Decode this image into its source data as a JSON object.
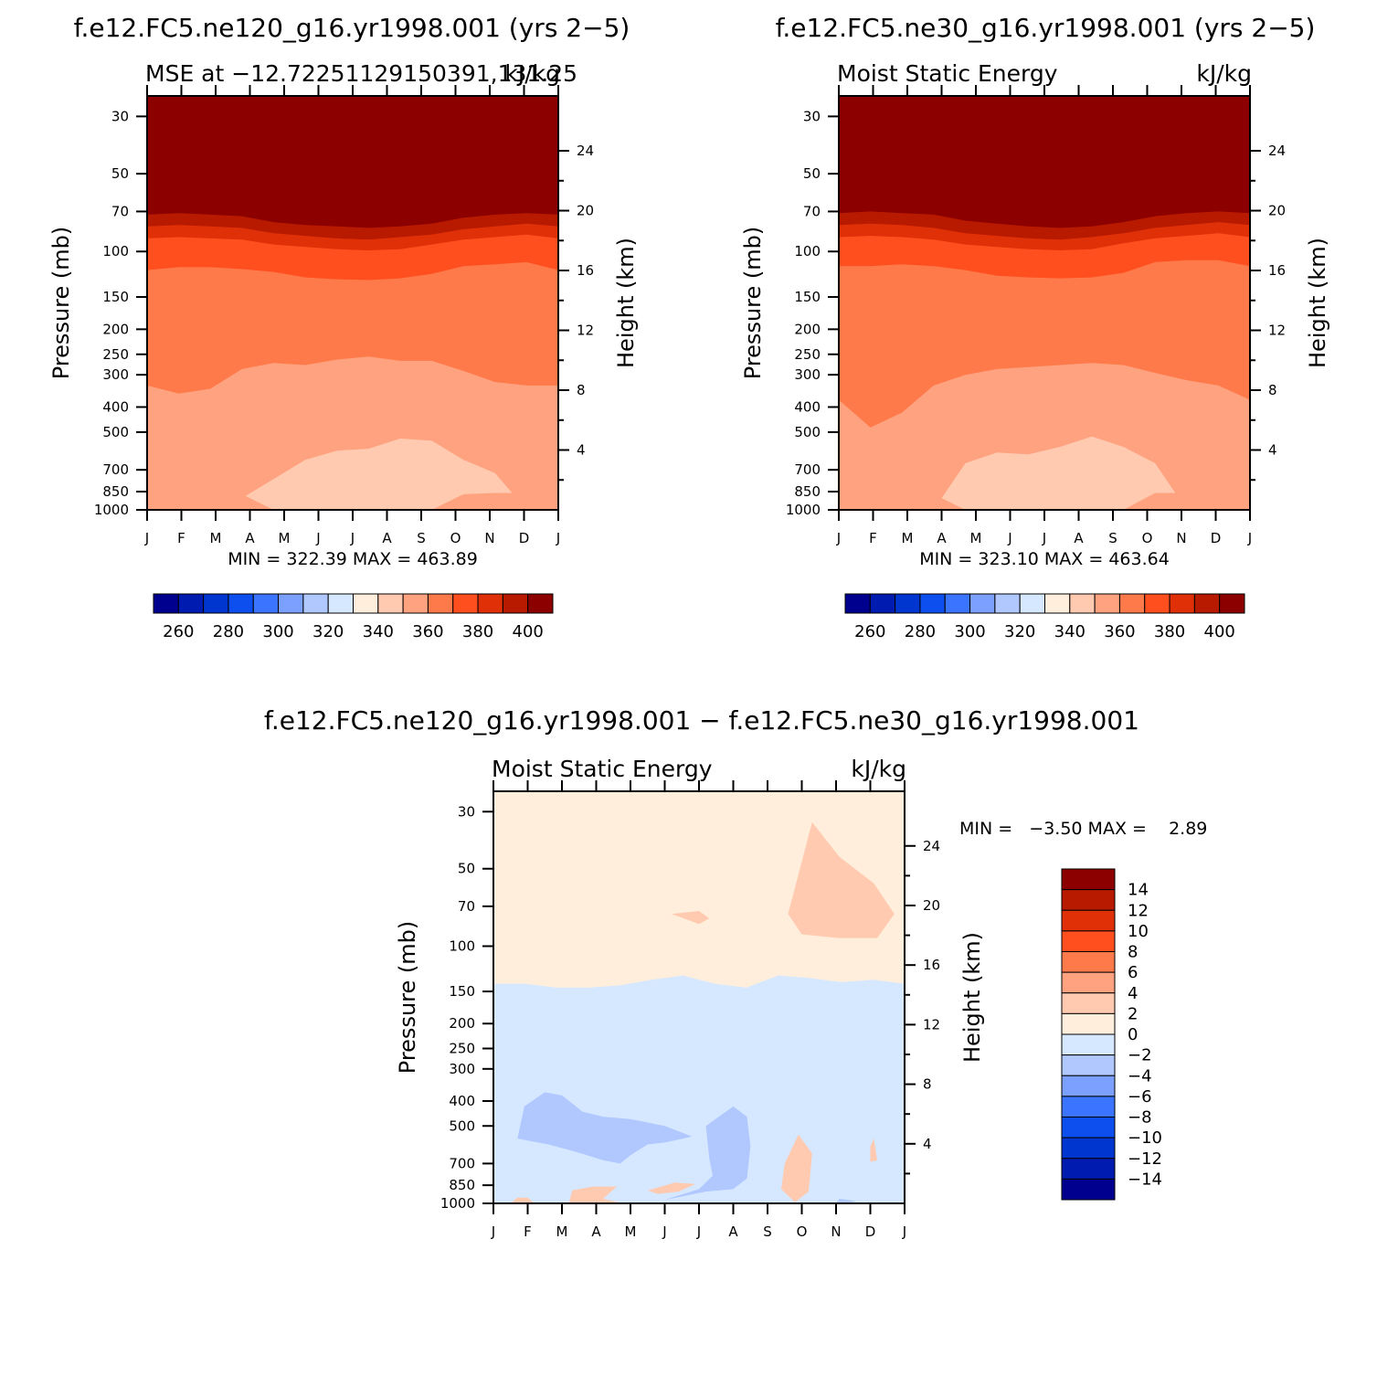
{
  "figure": {
    "titles": {
      "top_left": "f.e12.FC5.ne120_g16.yr1998.001 (yrs 2−5)",
      "top_right": "f.e12.FC5.ne30_g16.yr1998.001 (yrs 2−5)",
      "bottom": "f.e12.FC5.ne120_g16.yr1998.001 − f.e12.FC5.ne30_g16.yr1998.001"
    }
  },
  "chart_data": [
    {
      "type": "heatmap",
      "panel_id": "p1",
      "title_left": "MSE at −12.72251129150391,131.25",
      "title_right": "kJ/kg",
      "xlabel": "",
      "ylabel_left": "Pressure (mb)",
      "ylabel_right": "Height (km)",
      "x_tick_labels": [
        "J",
        "F",
        "M",
        "A",
        "M",
        "J",
        "J",
        "A",
        "S",
        "O",
        "N",
        "D",
        "J"
      ],
      "pressure_ticks": [
        30,
        50,
        70,
        100,
        150,
        200,
        250,
        300,
        400,
        500,
        700,
        850,
        1000
      ],
      "height_ticks": [
        4,
        8,
        12,
        16,
        20,
        24
      ],
      "ylim_mb": [
        1000,
        25
      ],
      "stats_text": "MIN = 322.39 MAX = 463.89",
      "min": 322.39,
      "max": 463.89,
      "boundaries_mb": [
        {
          "level": 400,
          "values": [
            58,
            57,
            59,
            59,
            62,
            63,
            64,
            64,
            63,
            61,
            57,
            55,
            56,
            58
          ]
        },
        {
          "level": 390,
          "values": [
            66,
            64,
            65,
            65,
            69,
            70,
            72,
            73,
            72,
            70,
            67,
            65,
            64,
            66
          ]
        },
        {
          "level": 380,
          "values": [
            72,
            71,
            72,
            73,
            77,
            79,
            80,
            81,
            80,
            78,
            74,
            72,
            71,
            72
          ]
        },
        {
          "level": 370,
          "values": [
            80,
            79,
            80,
            81,
            85,
            87,
            89,
            90,
            88,
            86,
            82,
            80,
            78,
            80
          ]
        },
        {
          "level": 360,
          "values": [
            89,
            88,
            89,
            90,
            94,
            96,
            98,
            99,
            98,
            94,
            90,
            88,
            86,
            89
          ]
        },
        {
          "level": 350,
          "values": [
            118,
            115,
            115,
            117,
            120,
            126,
            128,
            129,
            127,
            122,
            114,
            112,
            110,
            118
          ]
        },
        {
          "level": 340,
          "values": [
            330,
            355,
            340,
            285,
            270,
            275,
            262,
            255,
            265,
            265,
            290,
            320,
            330,
            330
          ]
        },
        {
          "level": 330,
          "values": [
            1000,
            1000,
            1000,
            900,
            760,
            640,
            590,
            580,
            530,
            540,
            640,
            720,
            1000,
            1000
          ]
        },
        {
          "level": 340,
          "values": [
            860,
            860,
            855,
            870,
            1000,
            1000,
            1000,
            1000,
            1000,
            1000,
            870,
            860,
            860,
            860
          ]
        }
      ]
    },
    {
      "type": "heatmap",
      "panel_id": "p2",
      "title_left": "Moist Static Energy",
      "title_right": "kJ/kg",
      "xlabel": "",
      "ylabel_left": "Pressure (mb)",
      "ylabel_right": "Height (km)",
      "x_tick_labels": [
        "J",
        "F",
        "M",
        "A",
        "M",
        "J",
        "J",
        "A",
        "S",
        "O",
        "N",
        "D",
        "J"
      ],
      "pressure_ticks": [
        30,
        50,
        70,
        100,
        150,
        200,
        250,
        300,
        400,
        500,
        700,
        850,
        1000
      ],
      "height_ticks": [
        4,
        8,
        12,
        16,
        20,
        24
      ],
      "ylim_mb": [
        1000,
        25
      ],
      "stats_text": "MIN = 323.10 MAX = 463.64",
      "min": 323.1,
      "max": 463.64,
      "boundaries_mb": [
        {
          "level": 400,
          "values": [
            57,
            56,
            58,
            59,
            61,
            63,
            64,
            64,
            63,
            61,
            57,
            55,
            55,
            57
          ]
        },
        {
          "level": 390,
          "values": [
            65,
            63,
            64,
            65,
            68,
            70,
            72,
            73,
            72,
            70,
            66,
            64,
            63,
            65
          ]
        },
        {
          "level": 380,
          "values": [
            71,
            70,
            71,
            72,
            76,
            78,
            80,
            81,
            80,
            77,
            73,
            71,
            70,
            71
          ]
        },
        {
          "level": 370,
          "values": [
            79,
            78,
            79,
            81,
            85,
            87,
            89,
            90,
            88,
            85,
            81,
            79,
            77,
            79
          ]
        },
        {
          "level": 360,
          "values": [
            88,
            87,
            88,
            90,
            94,
            96,
            98,
            99,
            98,
            93,
            89,
            87,
            85,
            88
          ]
        },
        {
          "level": 350,
          "values": [
            114,
            114,
            112,
            114,
            118,
            124,
            126,
            127,
            126,
            121,
            110,
            108,
            108,
            114
          ]
        },
        {
          "level": 340,
          "values": [
            375,
            480,
            420,
            330,
            300,
            285,
            280,
            275,
            270,
            275,
            295,
            315,
            330,
            375
          ]
        },
        {
          "level": 330,
          "values": [
            1000,
            1000,
            1000,
            1000,
            660,
            600,
            610,
            570,
            520,
            570,
            660,
            1000,
            1000,
            1000
          ]
        },
        {
          "level": 340,
          "values": [
            860,
            860,
            855,
            870,
            1000,
            1000,
            1000,
            1000,
            1000,
            1000,
            860,
            860,
            860,
            860
          ]
        }
      ]
    },
    {
      "type": "heatmap",
      "panel_id": "p3",
      "title_left": "Moist Static Energy",
      "title_right": "kJ/kg",
      "xlabel": "",
      "ylabel_left": "Pressure (mb)",
      "ylabel_right": "Height (km)",
      "x_tick_labels": [
        "J",
        "F",
        "M",
        "A",
        "M",
        "J",
        "J",
        "A",
        "S",
        "O",
        "N",
        "D",
        "J"
      ],
      "pressure_ticks": [
        30,
        50,
        70,
        100,
        150,
        200,
        250,
        300,
        400,
        500,
        700,
        850,
        1000
      ],
      "height_ticks": [
        4,
        8,
        12,
        16,
        20,
        24
      ],
      "ylim_mb": [
        1000,
        25
      ],
      "stats_text": "MIN =   −3.50 MAX =    2.89",
      "min": -3.5,
      "max": 2.89,
      "boundary_0_mb": [
        140,
        140,
        145,
        145,
        142,
        135,
        130,
        140,
        145,
        130,
        133,
        138,
        135,
        140
      ],
      "regions_mb": [
        {
          "level": 0,
          "points": [
            [
              0,
              25
            ],
            [
              1.4,
              25
            ],
            [
              1.1,
              35
            ],
            [
              0,
              28
            ]
          ]
        },
        {
          "level": 3,
          "points": [
            [
              8.6,
              75
            ],
            [
              9.3,
              33
            ],
            [
              10.1,
              45
            ],
            [
              11.1,
              57
            ],
            [
              11.7,
              75
            ],
            [
              11.2,
              93
            ],
            [
              10.1,
              93
            ],
            [
              9.0,
              90
            ]
          ]
        },
        {
          "level": 3,
          "points": [
            [
              5.2,
              75
            ],
            [
              6.0,
              73
            ],
            [
              6.3,
              78
            ],
            [
              6.0,
              82
            ]
          ]
        },
        {
          "level": -3,
          "points": [
            [
              0.7,
              560
            ],
            [
              0.9,
              420
            ],
            [
              1.5,
              370
            ],
            [
              2.0,
              380
            ],
            [
              2.6,
              440
            ],
            [
              3.2,
              460
            ],
            [
              4.0,
              470
            ],
            [
              5.0,
              500
            ],
            [
              5.8,
              550
            ],
            [
              5.0,
              580
            ],
            [
              4.5,
              590
            ],
            [
              4.0,
              650
            ],
            [
              3.7,
              700
            ],
            [
              3.2,
              680
            ],
            [
              2.4,
              630
            ],
            [
              1.6,
              590
            ]
          ]
        },
        {
          "level": -3,
          "points": [
            [
              6.2,
              500
            ],
            [
              7.0,
              420
            ],
            [
              7.4,
              460
            ],
            [
              7.5,
              600
            ],
            [
              7.4,
              800
            ],
            [
              7.0,
              880
            ],
            [
              6.2,
              900
            ],
            [
              5.0,
              970
            ],
            [
              5.2,
              950
            ],
            [
              6.0,
              880
            ],
            [
              6.4,
              780
            ],
            [
              6.3,
              670
            ]
          ]
        },
        {
          "level": 3,
          "points": [
            [
              8.5,
              700
            ],
            [
              8.9,
              540
            ],
            [
              9.3,
              640
            ],
            [
              9.2,
              900
            ],
            [
              8.8,
              990
            ],
            [
              8.4,
              880
            ]
          ]
        },
        {
          "level": 3,
          "points": [
            [
              11.0,
              600
            ],
            [
              11.1,
              560
            ],
            [
              11.2,
              680
            ],
            [
              11.0,
              690
            ]
          ]
        },
        {
          "level": 3,
          "points": [
            [
              4.5,
              890
            ],
            [
              5.3,
              830
            ],
            [
              5.9,
              840
            ],
            [
              5.4,
              900
            ],
            [
              4.8,
              920
            ]
          ]
        },
        {
          "level": 3,
          "points": [
            [
              2.2,
              1000
            ],
            [
              2.3,
              890
            ],
            [
              2.9,
              860
            ],
            [
              3.6,
              860
            ],
            [
              3.2,
              960
            ],
            [
              3.8,
              1000
            ]
          ]
        },
        {
          "level": 3,
          "points": [
            [
              0.5,
              1000
            ],
            [
              0.7,
              950
            ],
            [
              1.0,
              950
            ],
            [
              1.2,
              1000
            ]
          ]
        },
        {
          "level": -3,
          "points": [
            [
              10.0,
              1000
            ],
            [
              10.1,
              960
            ],
            [
              10.6,
              980
            ],
            [
              10.3,
              1000
            ]
          ]
        }
      ]
    }
  ],
  "colorbars": {
    "abs": {
      "colors": [
        "#00008e",
        "#001bb0",
        "#0036d0",
        "#0c4fee",
        "#3a74ff",
        "#7ca0ff",
        "#b1c8ff",
        "#d6e8ff",
        "#ffeedb",
        "#ffcab0",
        "#ffa27f",
        "#ff7a4a",
        "#ff4f1f",
        "#e03008",
        "#b81a00",
        "#8c0000"
      ],
      "labels": [
        "260",
        "280",
        "300",
        "320",
        "340",
        "360",
        "380",
        "400"
      ]
    },
    "diff": {
      "colors": [
        "#8c0000",
        "#b81a00",
        "#e03008",
        "#ff4f1f",
        "#ff7a4a",
        "#ffa27f",
        "#ffcab0",
        "#ffeedb",
        "#d6e8ff",
        "#b1c8ff",
        "#7ca0ff",
        "#3a74ff",
        "#0c4fee",
        "#0036d0",
        "#001bb0",
        "#00008e"
      ],
      "labels": [
        "14",
        "12",
        "10",
        "8",
        "6",
        "4",
        "2",
        "0",
        "−2",
        "−4",
        "−6",
        "−8",
        "−10",
        "−12",
        "−14"
      ]
    }
  }
}
